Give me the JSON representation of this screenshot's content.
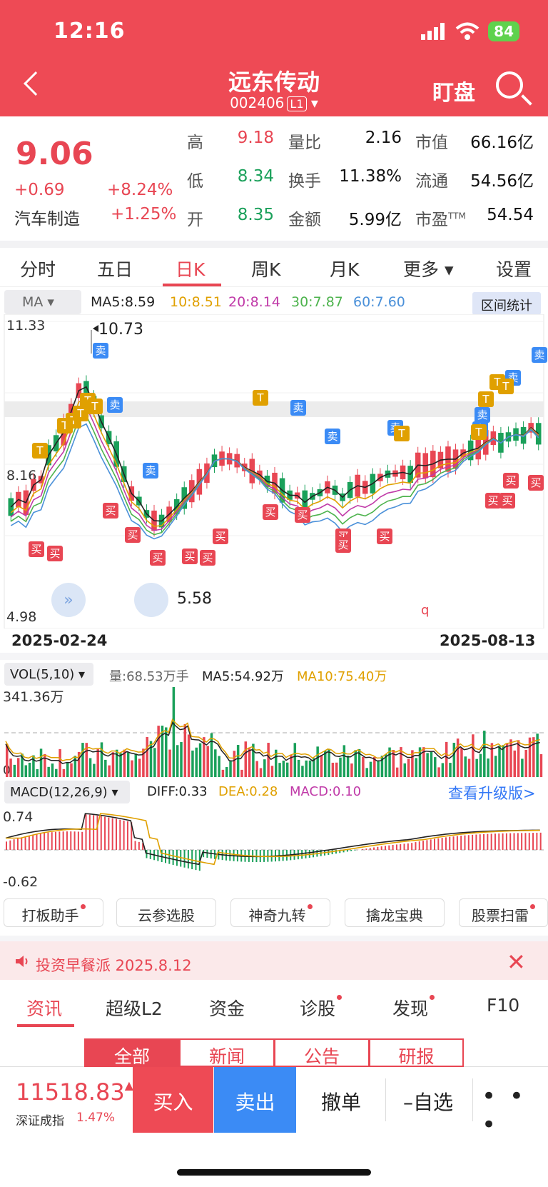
{
  "status_bar": {
    "time": "12:16",
    "battery": "84"
  },
  "header": {
    "title": "远东传动",
    "code": "002406",
    "level": "L1",
    "watch_label": "盯盘"
  },
  "quote": {
    "price": "9.06",
    "change": "+0.69",
    "change_pct": "+8.24%",
    "sector": "汽车制造",
    "sector_pct": "+1.25%",
    "stats": [
      {
        "label": "高",
        "value": "9.18",
        "color": "red"
      },
      {
        "label": "低",
        "value": "8.34",
        "color": "green"
      },
      {
        "label": "开",
        "value": "8.35",
        "color": "green"
      },
      {
        "label": "量比",
        "value": "2.16",
        "color": "dark"
      },
      {
        "label": "换手",
        "value": "11.38%",
        "color": "dark"
      },
      {
        "label": "金额",
        "value": "5.99亿",
        "color": "dark"
      },
      {
        "label": "市值",
        "value": "66.16亿",
        "color": "dark"
      },
      {
        "label": "流通",
        "value": "54.56亿",
        "color": "dark"
      },
      {
        "label": "市盈",
        "sup": "TTM",
        "value": "54.54",
        "color": "dark"
      }
    ]
  },
  "kline_tabs": [
    "分时",
    "五日",
    "日K",
    "周K",
    "月K",
    "更多",
    "设置"
  ],
  "active_tab": "日K",
  "ma_bar": {
    "select": "MA",
    "items": [
      {
        "text": "MA5:8.59",
        "color": "#222222"
      },
      {
        "text": "10:8.51",
        "color": "#e0a000"
      },
      {
        "text": "20:8.14",
        "color": "#c03aa8"
      },
      {
        "text": "30:7.87",
        "color": "#4db34d"
      },
      {
        "text": "60:7.60",
        "color": "#4a90d9"
      }
    ],
    "range_stat_label": "区间统计"
  },
  "main_chart": {
    "y_max_label": "11.33",
    "y_mid_label": "8.16",
    "y_min_label": "4.98",
    "high_marker": "10.73",
    "low_marker": "5.58",
    "start_date": "2025-02-24",
    "end_date": "2025-08-13",
    "buy_label": "买",
    "sell_label": "卖",
    "t_label": "T",
    "q_label": "q"
  },
  "vol": {
    "select": "VOL(5,10)",
    "max_label": "341.36万",
    "zero_label": "0",
    "items": [
      {
        "text": "量:68.53万手",
        "color": "#666666"
      },
      {
        "text": "MA5:54.92万",
        "color": "#222222"
      },
      {
        "text": "MA10:75.40万",
        "color": "#e0a000"
      }
    ]
  },
  "macd": {
    "select": "MACD(12,26,9)",
    "max_label": "0.74",
    "min_label": "-0.62",
    "items": [
      {
        "text": "DIFF:0.33",
        "color": "#222222"
      },
      {
        "text": "DEA:0.28",
        "color": "#e0a000"
      },
      {
        "text": "MACD:0.10",
        "color": "#c03aa8"
      }
    ],
    "upgrade_link": "查看升级版>"
  },
  "tools": [
    {
      "label": "打板助手",
      "dot": true
    },
    {
      "label": "云参选股",
      "dot": false
    },
    {
      "label": "神奇九转",
      "dot": true
    },
    {
      "label": "擒龙宝典",
      "dot": false
    },
    {
      "label": "股票扫雷",
      "dot": true
    }
  ],
  "promo": {
    "text": "投资早餐派 2025.8.12"
  },
  "info_tabs": [
    {
      "label": "资讯",
      "dot": false
    },
    {
      "label": "超级L2",
      "dot": false
    },
    {
      "label": "资金",
      "dot": false
    },
    {
      "label": "诊股",
      "dot": true
    },
    {
      "label": "发现",
      "dot": true
    },
    {
      "label": "F10",
      "dot": false
    }
  ],
  "sub_tabs": [
    "全部",
    "新闻",
    "公告",
    "研报"
  ],
  "bottom": {
    "index_value": "11518.83",
    "index_name": "深证成指",
    "index_pct": "1.47%",
    "buy_label": "买入",
    "sell_label": "卖出",
    "cancel_label": "撤单",
    "watchlist_label": "–自选",
    "more_label": "• • •"
  }
}
